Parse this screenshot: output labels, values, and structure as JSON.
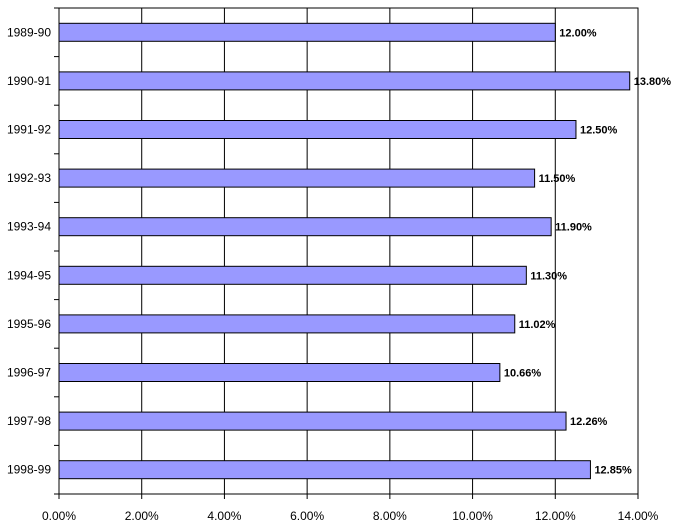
{
  "chart_data": {
    "type": "bar",
    "orientation": "horizontal",
    "categories": [
      "1989-90",
      "1990-91",
      "1991-92",
      "1992-93",
      "1993-94",
      "1994-95",
      "1995-96",
      "1996-97",
      "1997-98",
      "1998-99"
    ],
    "values": [
      12.0,
      13.8,
      12.5,
      11.5,
      11.9,
      11.3,
      11.02,
      10.66,
      12.26,
      12.85
    ],
    "data_labels": [
      "12.00%",
      "13.80%",
      "12.50%",
      "11.50%",
      "11.90%",
      "11.30%",
      "11.02%",
      "10.66%",
      "12.26%",
      "12.85%"
    ],
    "x_ticks": [
      "0.00%",
      "2.00%",
      "4.00%",
      "6.00%",
      "8.00%",
      "10.00%",
      "12.00%",
      "14.00%"
    ],
    "xlim": [
      0,
      14
    ],
    "grid": true,
    "legend": false,
    "bar_color": "#9999ff",
    "bar_border": "#000000",
    "title": "",
    "xlabel": "",
    "ylabel": ""
  }
}
